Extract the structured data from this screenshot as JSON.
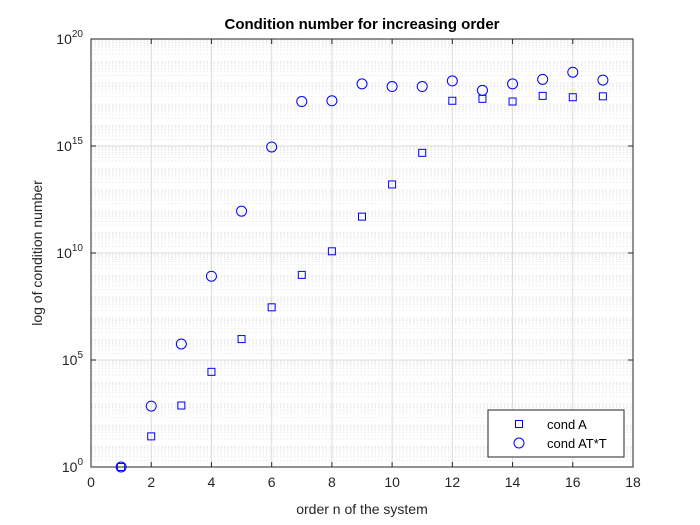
{
  "chart_data": {
    "type": "scatter",
    "title": "Condition number for increasing order",
    "xlabel": "order n of the system",
    "ylabel": "log of condition number",
    "xlim": [
      0,
      18
    ],
    "ylim": [
      1,
      1e+20
    ],
    "yscale": "log",
    "grid": true,
    "x_ticks": [
      0,
      2,
      4,
      6,
      8,
      10,
      12,
      14,
      16,
      18
    ],
    "y_ticks": [
      {
        "base": "10",
        "exp": "0",
        "value": 1
      },
      {
        "base": "10",
        "exp": "5",
        "value": 100000
      },
      {
        "base": "10",
        "exp": "10",
        "value": 10000000000
      },
      {
        "base": "10",
        "exp": "15",
        "value": 1000000000000000.0
      },
      {
        "base": "10",
        "exp": "20",
        "value": 1e+20
      }
    ],
    "legend_position": "bottom-right",
    "series": [
      {
        "name": "cond A",
        "marker": "square",
        "color": "#0000ff",
        "x": [
          1,
          2,
          3,
          4,
          5,
          6,
          7,
          8,
          9,
          10,
          11,
          12,
          13,
          14,
          15,
          16,
          17
        ],
        "y": [
          1,
          27,
          748,
          28000,
          950000,
          29000000,
          950000000,
          12000000000.0,
          500000000000.0,
          16000000000000.0,
          480000000000000.0,
          1.3e+17,
          1.6e+17,
          1.2e+17,
          2.2e+17,
          1.9e+17,
          2.1e+17
        ]
      },
      {
        "name": "cond AT*T",
        "marker": "circle",
        "color": "#0000ff",
        "x": [
          1,
          2,
          3,
          4,
          5,
          6,
          7,
          8,
          9,
          10,
          11,
          12,
          13,
          14,
          15,
          16,
          17
        ],
        "y": [
          1,
          700,
          560000,
          820000000,
          900000000000.0,
          900000000000000.0,
          1.2e+17,
          1.3e+17,
          8e+17,
          6e+17,
          6e+17,
          1.1e+18,
          4e+17,
          8e+17,
          1.3e+18,
          2.8e+18,
          1.2e+18
        ]
      }
    ]
  }
}
